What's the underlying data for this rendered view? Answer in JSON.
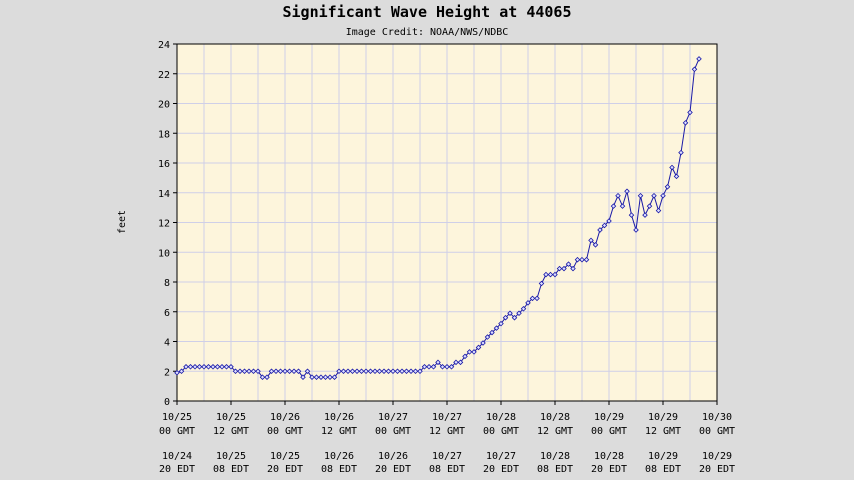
{
  "chart_data": {
    "type": "line",
    "title": "Significant Wave Height at 44065",
    "subtitle": "Image Credit: NOAA/NWS/NDBC",
    "ylabel": "feet",
    "xlabel": "",
    "xlim_hours": [
      0,
      120
    ],
    "ylim": [
      0,
      24
    ],
    "yticks": [
      0,
      2,
      4,
      6,
      8,
      10,
      12,
      14,
      16,
      18,
      20,
      22,
      24
    ],
    "grid": true,
    "legend": "none",
    "colors": {
      "plot_bg": "#fdf5dc",
      "page_bg": "#dcdcdc",
      "grid": "#cfcfe8",
      "line": "#1a1aa8"
    },
    "xticks": [
      {
        "hour": 0,
        "gmt_date": "10/25",
        "gmt_time": "00 GMT",
        "edt_date": "10/24",
        "edt_time": "20 EDT"
      },
      {
        "hour": 12,
        "gmt_date": "10/25",
        "gmt_time": "12 GMT",
        "edt_date": "10/25",
        "edt_time": "08 EDT"
      },
      {
        "hour": 24,
        "gmt_date": "10/26",
        "gmt_time": "00 GMT",
        "edt_date": "10/25",
        "edt_time": "20 EDT"
      },
      {
        "hour": 36,
        "gmt_date": "10/26",
        "gmt_time": "12 GMT",
        "edt_date": "10/26",
        "edt_time": "08 EDT"
      },
      {
        "hour": 48,
        "gmt_date": "10/27",
        "gmt_time": "00 GMT",
        "edt_date": "10/26",
        "edt_time": "20 EDT"
      },
      {
        "hour": 60,
        "gmt_date": "10/27",
        "gmt_time": "12 GMT",
        "edt_date": "10/27",
        "edt_time": "08 EDT"
      },
      {
        "hour": 72,
        "gmt_date": "10/28",
        "gmt_time": "00 GMT",
        "edt_date": "10/27",
        "edt_time": "20 EDT"
      },
      {
        "hour": 84,
        "gmt_date": "10/28",
        "gmt_time": "12 GMT",
        "edt_date": "10/28",
        "edt_time": "08 EDT"
      },
      {
        "hour": 96,
        "gmt_date": "10/29",
        "gmt_time": "00 GMT",
        "edt_date": "10/28",
        "edt_time": "20 EDT"
      },
      {
        "hour": 108,
        "gmt_date": "10/29",
        "gmt_time": "12 GMT",
        "edt_date": "10/29",
        "edt_time": "08 EDT"
      },
      {
        "hour": 120,
        "gmt_date": "10/30",
        "gmt_time": "00 GMT",
        "edt_date": "10/29",
        "edt_time": "20 EDT"
      }
    ],
    "series": [
      {
        "x_hours": [
          0,
          1,
          2,
          3,
          4,
          5,
          6,
          7,
          8,
          9,
          10,
          11,
          12,
          13,
          14,
          15,
          16,
          17,
          18,
          19,
          20,
          21,
          22,
          23,
          24,
          25,
          26,
          27,
          28,
          29,
          30,
          31,
          32,
          33,
          34,
          35,
          36,
          37,
          38,
          39,
          40,
          41,
          42,
          43,
          44,
          45,
          46,
          47,
          48,
          49,
          50,
          51,
          52,
          53,
          54,
          55,
          56,
          57,
          58,
          59,
          60,
          61,
          62,
          63,
          64,
          65,
          66,
          67,
          68,
          69,
          70,
          71,
          72,
          73,
          74,
          75,
          76,
          77,
          78,
          79,
          80,
          81,
          82,
          83,
          84,
          85,
          86,
          87,
          88,
          89,
          90,
          91,
          92,
          93,
          94,
          95,
          96,
          97,
          98,
          99,
          100,
          101,
          102,
          103,
          104,
          105,
          106,
          107,
          108,
          109,
          110,
          111,
          112,
          113,
          114,
          115,
          116
        ],
        "values": [
          1.9,
          2.0,
          2.3,
          2.3,
          2.3,
          2.3,
          2.3,
          2.3,
          2.3,
          2.3,
          2.3,
          2.3,
          2.3,
          2.0,
          2.0,
          2.0,
          2.0,
          2.0,
          2.0,
          1.6,
          1.6,
          2.0,
          2.0,
          2.0,
          2.0,
          2.0,
          2.0,
          2.0,
          1.6,
          2.0,
          1.6,
          1.6,
          1.6,
          1.6,
          1.6,
          1.6,
          2.0,
          2.0,
          2.0,
          2.0,
          2.0,
          2.0,
          2.0,
          2.0,
          2.0,
          2.0,
          2.0,
          2.0,
          2.0,
          2.0,
          2.0,
          2.0,
          2.0,
          2.0,
          2.0,
          2.3,
          2.3,
          2.3,
          2.6,
          2.3,
          2.3,
          2.3,
          2.6,
          2.6,
          3.0,
          3.3,
          3.3,
          3.6,
          3.9,
          4.3,
          4.6,
          4.9,
          5.2,
          5.6,
          5.9,
          5.6,
          5.9,
          6.2,
          6.6,
          6.9,
          6.9,
          7.9,
          8.5,
          8.5,
          8.5,
          8.9,
          8.9,
          9.2,
          8.9,
          9.5,
          9.5,
          9.5,
          10.8,
          10.5,
          11.5,
          11.8,
          12.1,
          13.1,
          13.8,
          13.1,
          14.1,
          12.5,
          11.5,
          13.8,
          12.5,
          13.1,
          13.8,
          12.8,
          13.8,
          14.4,
          15.7,
          15.1,
          16.7,
          18.7,
          19.4,
          22.3,
          23.0
        ]
      }
    ]
  }
}
